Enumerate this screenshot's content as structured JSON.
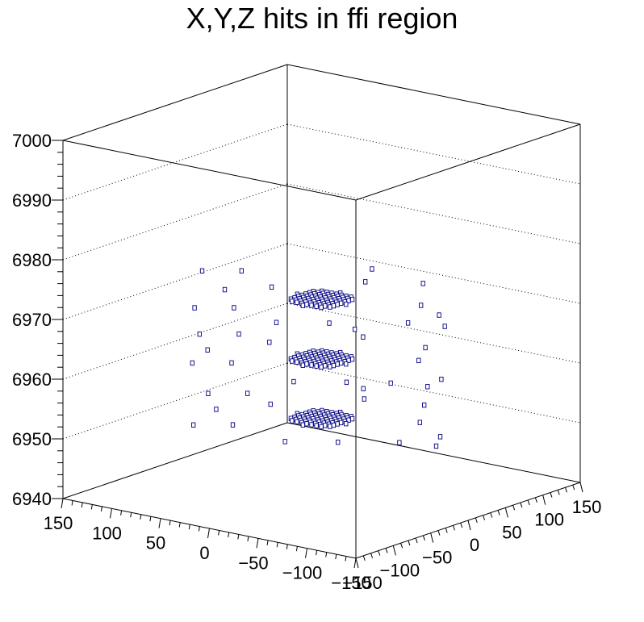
{
  "chart_data": {
    "type": "scatter",
    "title": "X,Y,Z hits in ffi region",
    "xlabel": "",
    "ylabel": "",
    "zlabel": "",
    "xlim": [
      -150,
      150
    ],
    "ylim": [
      -150,
      150
    ],
    "zlim": [
      6940,
      7000
    ],
    "x_ticks": [
      150,
      100,
      50,
      0,
      -50,
      -100,
      -150
    ],
    "y_ticks": [
      -150,
      -100,
      -50,
      0,
      50,
      100,
      150
    ],
    "z_ticks": [
      6940,
      6950,
      6960,
      6970,
      6980,
      6990,
      7000
    ],
    "grid": true,
    "marker_style": "box",
    "colors": {
      "marker": "#000080",
      "axes": "#000000"
    },
    "layers": [
      {
        "z": 6952,
        "radius": 25,
        "outliers": [
          [
            -110,
            15
          ],
          [
            -95,
            -20
          ],
          [
            -70,
            40
          ],
          [
            60,
            10
          ],
          [
            85,
            -30
          ],
          [
            95,
            25
          ],
          [
            -20,
            -75
          ],
          [
            10,
            70
          ],
          [
            45,
            -60
          ],
          [
            -55,
            -50
          ],
          [
            120,
            5
          ],
          [
            -125,
            -10
          ],
          [
            30,
            95
          ],
          [
            -40,
            85
          ],
          [
            70,
            -80
          ]
        ]
      },
      {
        "z": 6962,
        "radius": 25,
        "outliers": [
          [
            -115,
            10
          ],
          [
            -90,
            -25
          ],
          [
            -65,
            45
          ],
          [
            65,
            15
          ],
          [
            90,
            -35
          ],
          [
            100,
            20
          ],
          [
            -25,
            -70
          ],
          [
            15,
            75
          ],
          [
            50,
            -55
          ],
          [
            -60,
            -45
          ],
          [
            125,
            0
          ],
          [
            -120,
            -15
          ],
          [
            35,
            90
          ],
          [
            -45,
            80
          ],
          [
            75,
            -75
          ]
        ]
      },
      {
        "z": 6972,
        "radius": 25,
        "outliers": [
          [
            -105,
            20
          ],
          [
            -100,
            -15
          ],
          [
            -75,
            35
          ],
          [
            55,
            5
          ],
          [
            80,
            -25
          ],
          [
            105,
            30
          ],
          [
            -15,
            -80
          ],
          [
            5,
            65
          ],
          [
            40,
            -65
          ],
          [
            -50,
            -55
          ],
          [
            130,
            10
          ],
          [
            -130,
            -5
          ],
          [
            25,
            100
          ],
          [
            -35,
            90
          ],
          [
            65,
            -85
          ]
        ]
      }
    ]
  }
}
